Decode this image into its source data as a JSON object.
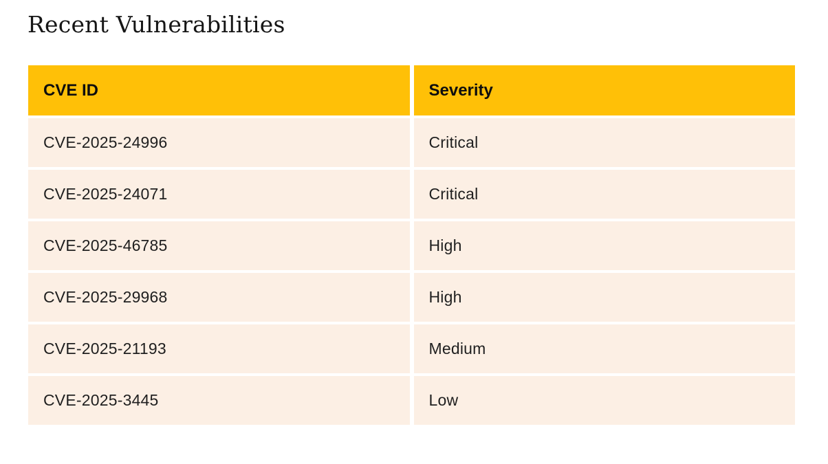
{
  "page": {
    "title": "Recent Vulnerabilities"
  },
  "colors": {
    "header_background": "#FFC007",
    "row_background": "#FCEFE4",
    "page_background": "#FFFFFF",
    "text": "#1C1C1C"
  },
  "table": {
    "columns": [
      "CVE ID",
      "Severity"
    ],
    "rows": [
      {
        "cve_id": "CVE-2025-24996",
        "severity": "Critical"
      },
      {
        "cve_id": "CVE-2025-24071",
        "severity": "Critical"
      },
      {
        "cve_id": "CVE-2025-46785",
        "severity": "High"
      },
      {
        "cve_id": "CVE-2025-29968",
        "severity": "High"
      },
      {
        "cve_id": "CVE-2025-21193",
        "severity": "Medium"
      },
      {
        "cve_id": "CVE-2025-3445",
        "severity": "Low"
      }
    ]
  }
}
